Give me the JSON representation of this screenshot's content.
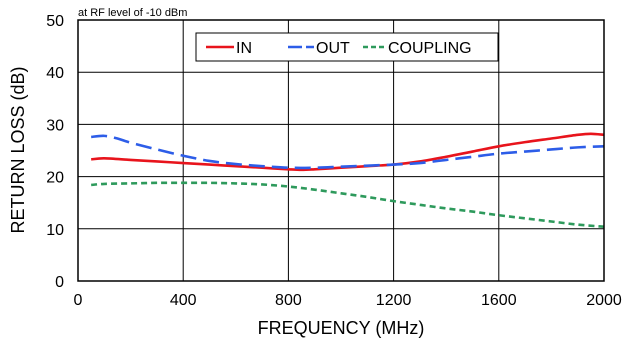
{
  "chart_data": {
    "type": "line",
    "annotation": "at RF level of -10 dBm",
    "xlabel": "FREQUENCY (MHz)",
    "ylabel": "RETURN LOSS (dB)",
    "xlim": [
      0,
      2000
    ],
    "ylim": [
      0,
      50
    ],
    "xticks": [
      0,
      400,
      800,
      1200,
      1600,
      2000
    ],
    "yticks": [
      0,
      10,
      20,
      30,
      40,
      50
    ],
    "grid": true,
    "legend_position": "top",
    "series": [
      {
        "name": "IN",
        "color": "#e8141c",
        "dash": "solid",
        "x": [
          50,
          100,
          200,
          300,
          400,
          500,
          600,
          700,
          800,
          850,
          900,
          1000,
          1100,
          1200,
          1300,
          1400,
          1500,
          1600,
          1700,
          1800,
          1900,
          1950,
          2000
        ],
        "y": [
          23.3,
          23.5,
          23.2,
          22.9,
          22.6,
          22.3,
          22.0,
          21.7,
          21.4,
          21.3,
          21.4,
          21.7,
          22.0,
          22.3,
          22.9,
          23.8,
          24.8,
          25.8,
          26.6,
          27.3,
          28.0,
          28.2,
          28.0
        ]
      },
      {
        "name": "OUT",
        "color": "#2d5de8",
        "dash": "long",
        "x": [
          50,
          100,
          150,
          200,
          300,
          400,
          500,
          600,
          700,
          800,
          900,
          1000,
          1100,
          1200,
          1300,
          1400,
          1500,
          1600,
          1700,
          1800,
          1900,
          2000
        ],
        "y": [
          27.6,
          27.8,
          27.3,
          26.5,
          25.2,
          24.0,
          23.0,
          22.4,
          22.0,
          21.7,
          21.7,
          21.9,
          22.1,
          22.3,
          22.6,
          23.2,
          23.8,
          24.4,
          24.8,
          25.2,
          25.6,
          25.8
        ]
      },
      {
        "name": "COUPLING",
        "color": "#2e9a5c",
        "dash": "short",
        "x": [
          50,
          100,
          200,
          300,
          400,
          500,
          600,
          700,
          800,
          900,
          1000,
          1100,
          1200,
          1300,
          1400,
          1500,
          1600,
          1700,
          1800,
          1900,
          2000
        ],
        "y": [
          18.4,
          18.6,
          18.7,
          18.8,
          18.8,
          18.8,
          18.7,
          18.5,
          18.1,
          17.5,
          16.8,
          16.1,
          15.3,
          14.6,
          13.9,
          13.3,
          12.6,
          12.0,
          11.4,
          10.8,
          10.4
        ]
      }
    ]
  }
}
